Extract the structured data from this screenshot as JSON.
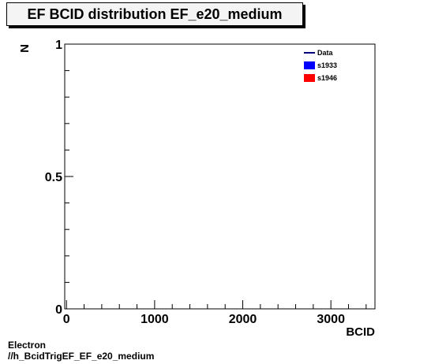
{
  "title": "EF BCID distribution EF_e20_medium",
  "footer": {
    "line1": "Electron",
    "line2": "//h_BcidTrigEF_EF_e20_medium"
  },
  "chart_data": {
    "type": "line",
    "title": "EF BCID distribution EF_e20_medium",
    "xlabel": "BCID",
    "ylabel": "N",
    "xlim": [
      -20,
      3500
    ],
    "ylim": [
      0,
      1
    ],
    "x_ticks": [
      0,
      1000,
      2000,
      3000
    ],
    "x_tick_labels": [
      "0",
      "1000",
      "2000",
      "3000"
    ],
    "y_ticks": [
      0,
      0.5,
      1
    ],
    "y_tick_labels": [
      "0",
      "0.5",
      "1"
    ],
    "grid": false,
    "legend_position": "top-right",
    "series": [
      {
        "name": "Data",
        "style": "line",
        "color": "#00007f",
        "values": []
      },
      {
        "name": "s1933",
        "style": "fill",
        "color": "#0000ff",
        "values": []
      },
      {
        "name": "s1946",
        "style": "fill",
        "color": "#ff0000",
        "values": []
      }
    ]
  }
}
